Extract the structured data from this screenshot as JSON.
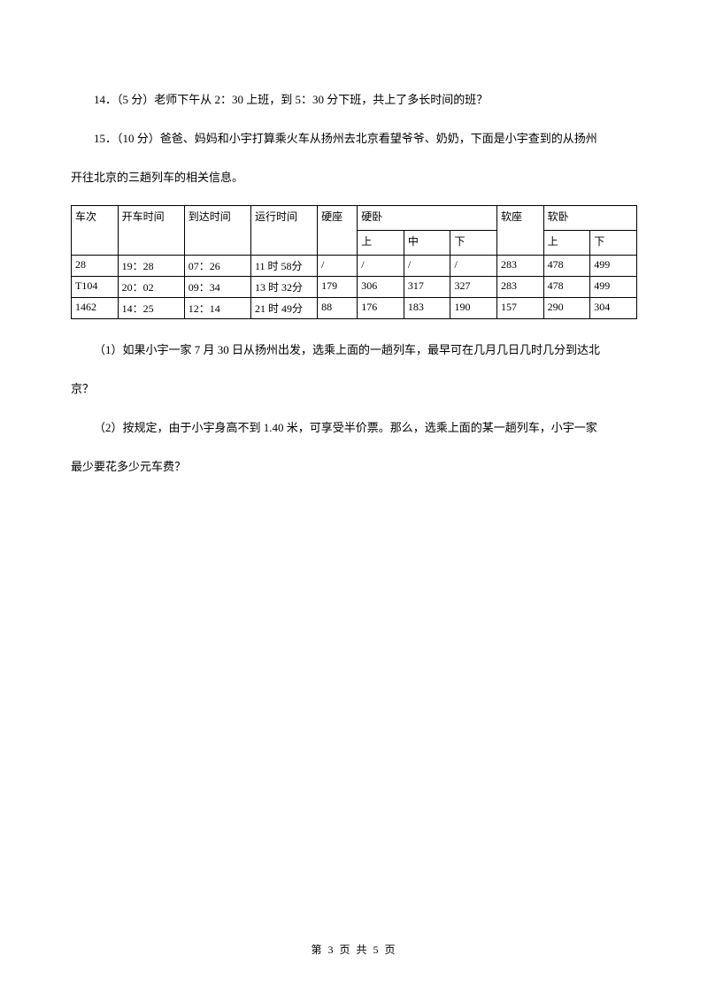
{
  "q14": {
    "text": "14．（5 分）老师下午从 2：30 上班，到 5：30 分下班，共上了多长时间的班？"
  },
  "q15": {
    "intro_line1": "15．（10 分）爸爸、妈妈和小宇打算乘火车从扬州去北京看望爷爷、奶奶，下面是小宇查到的从扬州",
    "intro_line2": "开往北京的三趟列车的相关信息。"
  },
  "table": {
    "headers": {
      "train": "车次",
      "depart": "开车时间",
      "arrive": "到达时间",
      "duration": "运行时间",
      "hardseat": "硬座",
      "hardsleeper": "硬卧",
      "softseat": "软座",
      "softsleeper": "软卧",
      "upper": "上",
      "middle": "中",
      "lower": "下"
    },
    "rows": [
      {
        "train": "28",
        "depart": "19：28",
        "arrive": "07：26",
        "duration": "11 时 58分",
        "hardseat": "/",
        "hs_upper": "/",
        "hs_middle": "/",
        "hs_lower": "/",
        "softseat": "283",
        "ss_upper": "478",
        "ss_lower": "499"
      },
      {
        "train": "T104",
        "depart": "20：02",
        "arrive": "09：34",
        "duration": "13 时 32分",
        "hardseat": "179",
        "hs_upper": "306",
        "hs_middle": "317",
        "hs_lower": "327",
        "softseat": "283",
        "ss_upper": "478",
        "ss_lower": "499"
      },
      {
        "train": "1462",
        "depart": "14：25",
        "arrive": "12：14",
        "duration": "21 时 49分",
        "hardseat": "88",
        "hs_upper": "176",
        "hs_middle": "183",
        "hs_lower": "190",
        "softseat": "157",
        "ss_upper": "290",
        "ss_lower": "304"
      }
    ]
  },
  "sub1": {
    "line1": "（1）如果小宇一家 7 月 30 日从扬州出发，选乘上面的一趟列车，最早可在几月几日几时几分到达北",
    "line2": "京？"
  },
  "sub2": {
    "line1": "（2）按规定，由于小宇身高不到 1.40 米，可享受半价票。那么，选乘上面的某一趟列车，小宇一家",
    "line2": "最少要花多少元车费？"
  },
  "footer": "第 3 页 共 5 页"
}
